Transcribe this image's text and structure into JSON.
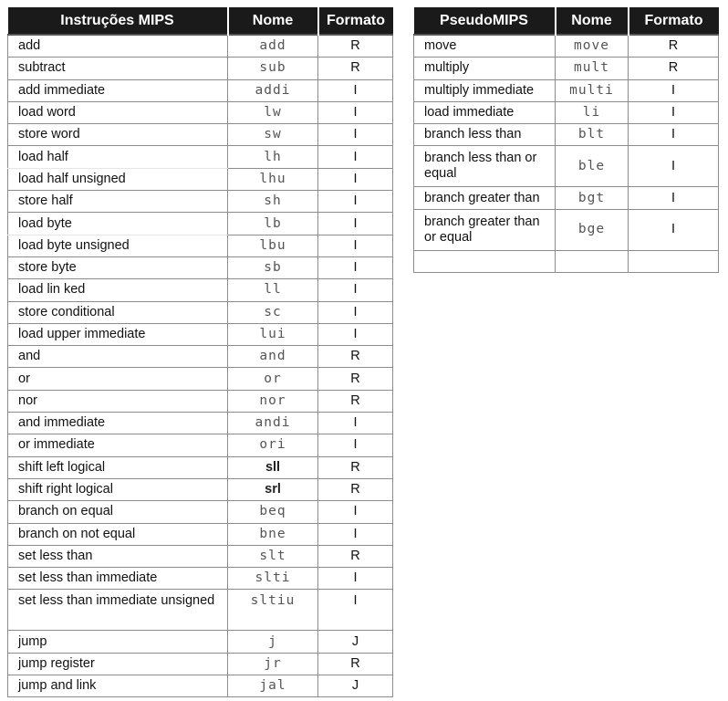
{
  "mips": {
    "headers": {
      "instr": "Instruções MIPS",
      "name": "Nome",
      "format": "Formato"
    },
    "rows": [
      {
        "instr": "add",
        "name": "add",
        "format": "R"
      },
      {
        "instr": "subtract",
        "name": "sub",
        "format": "R"
      },
      {
        "instr": "add immediate",
        "name": "addi",
        "format": "I"
      },
      {
        "instr": "load word",
        "name": "lw",
        "format": "I"
      },
      {
        "instr": "store word",
        "name": "sw",
        "format": "I"
      },
      {
        "instr": "load half",
        "name": "lh",
        "format": "I"
      },
      {
        "instr": "load half unsigned",
        "name": "lhu",
        "format": "I"
      },
      {
        "instr": "store half",
        "name": "sh",
        "format": "I"
      },
      {
        "instr": "load byte",
        "name": "lb",
        "format": "I"
      },
      {
        "instr": "load byte unsigned",
        "name": "lbu",
        "format": "I"
      },
      {
        "instr": "store byte",
        "name": "sb",
        "format": "I"
      },
      {
        "instr": "load lin ked",
        "name": "ll",
        "format": "I"
      },
      {
        "instr": "store conditional",
        "name": "sc",
        "format": "I"
      },
      {
        "instr": "load upper immediate",
        "name": "lui",
        "format": "I"
      },
      {
        "instr": "and",
        "name": "and",
        "format": "R"
      },
      {
        "instr": "or",
        "name": "or",
        "format": "R"
      },
      {
        "instr": "nor",
        "name": "nor",
        "format": "R"
      },
      {
        "instr": "and immediate",
        "name": "andi",
        "format": "I"
      },
      {
        "instr": "or immediate",
        "name": "ori",
        "format": "I"
      },
      {
        "instr": "shift left logical",
        "name": "sll",
        "format": "R"
      },
      {
        "instr": "shift right logical",
        "name": "srl",
        "format": "R"
      },
      {
        "instr": "branch on equal",
        "name": "beq",
        "format": "I"
      },
      {
        "instr": "branch on not equal",
        "name": "bne",
        "format": "I"
      },
      {
        "instr": "set less than",
        "name": "slt",
        "format": "R"
      },
      {
        "instr": "set less than immediate",
        "name": "slti",
        "format": "I"
      },
      {
        "instr": "set less than immediate unsigned",
        "name": "sltiu",
        "format": "I"
      },
      {
        "instr": "jump",
        "name": "j",
        "format": "J"
      },
      {
        "instr": "jump register",
        "name": "jr",
        "format": "R"
      },
      {
        "instr": "jump and link",
        "name": "jal",
        "format": "J"
      }
    ]
  },
  "pseudo": {
    "headers": {
      "instr": "PseudoMIPS",
      "name": "Nome",
      "format": "Formato"
    },
    "rows": [
      {
        "instr": "move",
        "name": "move",
        "format": "R"
      },
      {
        "instr": "multiply",
        "name": "mult",
        "format": "R"
      },
      {
        "instr": "multiply immediate",
        "name": "multi",
        "format": "I"
      },
      {
        "instr": "load immediate",
        "name": "li",
        "format": "I"
      },
      {
        "instr": "branch less than",
        "name": "blt",
        "format": "I"
      },
      {
        "instr": "branch less than or equal",
        "name": "ble",
        "format": "I"
      },
      {
        "instr": "branch greater than",
        "name": "bgt",
        "format": "I"
      },
      {
        "instr": "branch greater than or equal",
        "name": "bge",
        "format": "I"
      }
    ]
  }
}
